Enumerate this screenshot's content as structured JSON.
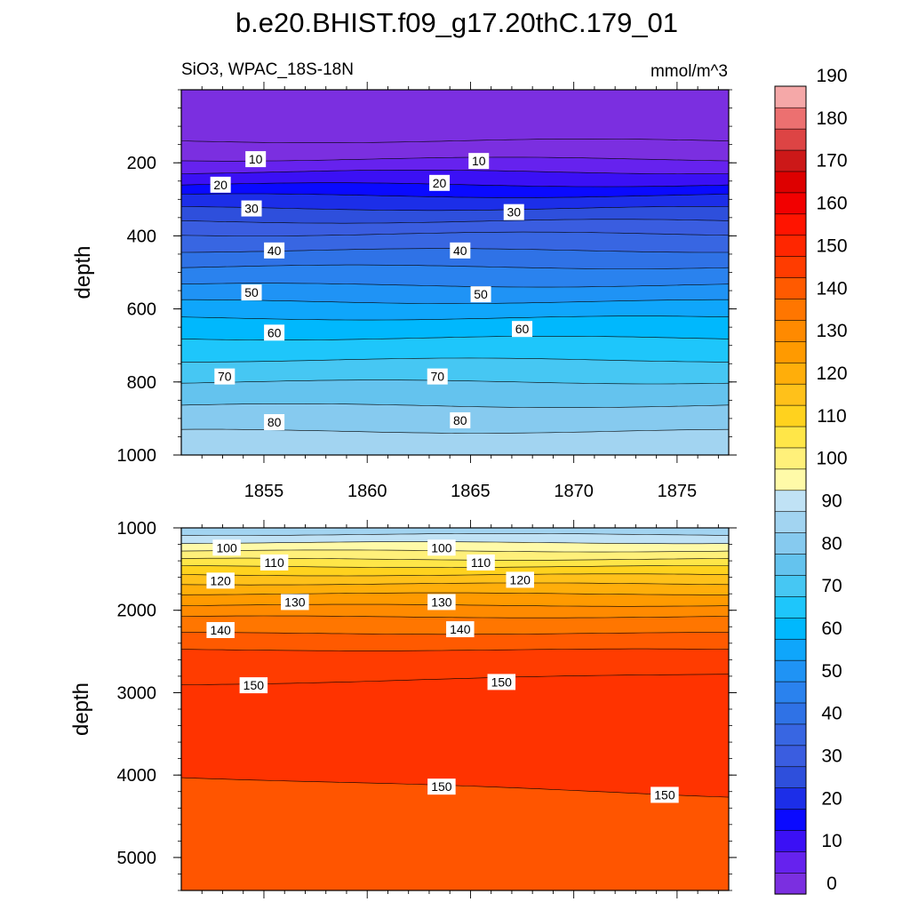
{
  "title": "b.e20.BHIST.f09_g17.20thC.179_01",
  "subtitle_left": "SiO3, WPAC_18S-18N",
  "subtitle_right": "mmol/m^3",
  "chart_data": {
    "type": "contour",
    "title": "b.e20.BHIST.f09_g17.20thC.179_01",
    "variable": "SiO3, WPAC_18S-18N",
    "units": "mmol/m^3",
    "xlabel": "",
    "ylabel": "depth",
    "xlim": [
      1851,
      1877.5
    ],
    "x_ticks": [
      1855,
      1860,
      1865,
      1870,
      1875
    ],
    "x_tick_labels": [
      "1855",
      "1860",
      "1865",
      "1870",
      "1875"
    ],
    "y_axis_inverted": true,
    "panels": [
      {
        "name": "upper",
        "ylabel": "depth",
        "ylim": [
          0,
          1000
        ],
        "y_ticks": [
          200,
          400,
          600,
          800,
          1000
        ],
        "y_tick_labels": [
          "200",
          "400",
          "600",
          "800",
          "1000"
        ],
        "contour_levels": [
          0,
          5,
          10,
          15,
          20,
          25,
          30,
          35,
          40,
          45,
          50,
          55,
          60,
          65,
          70,
          75,
          80,
          85
        ],
        "level_depths": [
          140,
          190,
          225,
          260,
          290,
          325,
          360,
          395,
          440,
          485,
          535,
          580,
          625,
          680,
          740,
          800,
          865,
          935
        ],
        "contour_labels": [
          {
            "text": "10",
            "x": 1854.6,
            "y": 190
          },
          {
            "text": "10",
            "x": 1865.4,
            "y": 195
          },
          {
            "text": "20",
            "x": 1852.9,
            "y": 260
          },
          {
            "text": "20",
            "x": 1863.5,
            "y": 255
          },
          {
            "text": "30",
            "x": 1854.4,
            "y": 325
          },
          {
            "text": "30",
            "x": 1867.1,
            "y": 335
          },
          {
            "text": "40",
            "x": 1855.5,
            "y": 440
          },
          {
            "text": "40",
            "x": 1864.5,
            "y": 440
          },
          {
            "text": "50",
            "x": 1854.4,
            "y": 555
          },
          {
            "text": "50",
            "x": 1865.5,
            "y": 560
          },
          {
            "text": "60",
            "x": 1855.5,
            "y": 665
          },
          {
            "text": "60",
            "x": 1867.5,
            "y": 655
          },
          {
            "text": "70",
            "x": 1853.1,
            "y": 785
          },
          {
            "text": "70",
            "x": 1863.4,
            "y": 785
          },
          {
            "text": "80",
            "x": 1855.5,
            "y": 910
          },
          {
            "text": "80",
            "x": 1864.5,
            "y": 905
          }
        ]
      },
      {
        "name": "lower",
        "ylabel": "depth",
        "ylim": [
          1000,
          5400
        ],
        "y_ticks": [
          1000,
          2000,
          3000,
          4000,
          5000
        ],
        "y_tick_labels": [
          "1000",
          "2000",
          "3000",
          "4000",
          "5000"
        ],
        "contour_levels": [
          85,
          90,
          95,
          100,
          105,
          110,
          115,
          120,
          125,
          130,
          135,
          140,
          145,
          150,
          150
        ],
        "level_depths": [
          1000,
          1080,
          1180,
          1280,
          1380,
          1470,
          1570,
          1680,
          1800,
          1940,
          2080,
          2280,
          2480,
          2900,
          4020
        ],
        "contour_labels": [
          {
            "text": "100",
            "x": 1853.2,
            "y": 1240
          },
          {
            "text": "100",
            "x": 1863.6,
            "y": 1240
          },
          {
            "text": "110",
            "x": 1855.5,
            "y": 1420
          },
          {
            "text": "110",
            "x": 1865.5,
            "y": 1420
          },
          {
            "text": "120",
            "x": 1852.9,
            "y": 1640
          },
          {
            "text": "120",
            "x": 1867.4,
            "y": 1630
          },
          {
            "text": "130",
            "x": 1856.5,
            "y": 1900
          },
          {
            "text": "130",
            "x": 1863.6,
            "y": 1900
          },
          {
            "text": "140",
            "x": 1852.9,
            "y": 2240
          },
          {
            "text": "140",
            "x": 1864.5,
            "y": 2230
          },
          {
            "text": "150",
            "x": 1854.5,
            "y": 2910
          },
          {
            "text": "150",
            "x": 1866.5,
            "y": 2870
          },
          {
            "text": "150",
            "x": 1863.6,
            "y": 4140
          },
          {
            "text": "150",
            "x": 1874.4,
            "y": 4240
          }
        ]
      }
    ],
    "colorbar": {
      "levels": [
        0,
        5,
        10,
        15,
        20,
        25,
        30,
        35,
        40,
        45,
        50,
        55,
        60,
        65,
        70,
        75,
        80,
        85,
        90,
        95,
        100,
        105,
        110,
        115,
        120,
        125,
        130,
        135,
        140,
        145,
        150,
        155,
        160,
        165,
        170,
        175,
        180,
        185,
        190,
        195
      ],
      "tick_labels": [
        "0",
        "10",
        "20",
        "30",
        "40",
        "50",
        "60",
        "70",
        "80",
        "90",
        "100",
        "110",
        "120",
        "130",
        "140",
        "150",
        "160",
        "170",
        "180",
        "190"
      ],
      "colors": [
        "#7b2fe0",
        "#6622ee",
        "#3b10f5",
        "#0a0aff",
        "#1c2ee8",
        "#2e4fdc",
        "#3a5de0",
        "#3866e2",
        "#2f72e6",
        "#2a82ee",
        "#1f93f5",
        "#0fa6fb",
        "#00b8fd",
        "#1ec6fb",
        "#46c7f3",
        "#64c3ee",
        "#86caef",
        "#a2d4f1",
        "#c0e2f5",
        "#fffaa8",
        "#fff07a",
        "#ffe648",
        "#ffd21e",
        "#ffc11a",
        "#ffae0a",
        "#ff9a00",
        "#ff8a00",
        "#ff7600",
        "#ff5a00",
        "#ff3c00",
        "#ff2600",
        "#ff1400",
        "#f20000",
        "#dd0000",
        "#cc1818",
        "#dd4444",
        "#ec7070",
        "#f5a8a8"
      ]
    }
  }
}
